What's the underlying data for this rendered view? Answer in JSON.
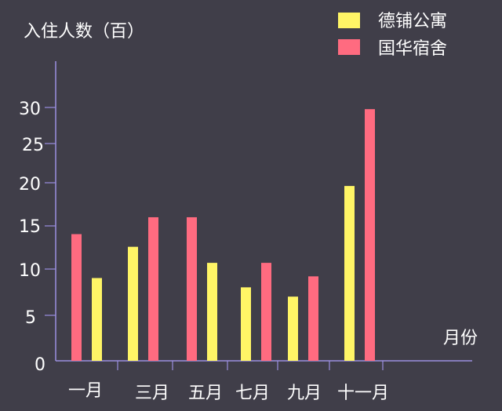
{
  "chart_data": {
    "type": "bar",
    "ylabel": "入住人数（百）",
    "xlabel": "月份",
    "yticks": [
      0,
      5,
      10,
      15,
      20,
      25,
      30
    ],
    "ylim": [
      0,
      35
    ],
    "grid": false,
    "legend_position": "top-right",
    "groups": [
      {
        "label": "一月",
        "bars": [
          {
            "series": "国华宿舍",
            "value": 15
          },
          {
            "series": "德铺公寓",
            "value": 9.8
          }
        ]
      },
      {
        "label": "三月",
        "bars": [
          {
            "series": "德铺公寓",
            "value": 13.5
          },
          {
            "series": "国华宿舍",
            "value": 17
          }
        ]
      },
      {
        "label": "五月",
        "bars": [
          {
            "series": "国华宿舍",
            "value": 17
          },
          {
            "series": "德铺公寓",
            "value": 11.6
          }
        ]
      },
      {
        "label": "七月",
        "bars": [
          {
            "series": "德铺公寓",
            "value": 8.7
          },
          {
            "series": "国华宿舍",
            "value": 11.6
          }
        ]
      },
      {
        "label": "九月",
        "bars": [
          {
            "series": "德铺公寓",
            "value": 7.6
          },
          {
            "series": "国华宿舍",
            "value": 10
          }
        ]
      },
      {
        "label": "十一月",
        "bars": [
          {
            "series": "德铺公寓",
            "value": 20.7
          },
          {
            "series": "国华宿舍",
            "value": 29.8
          }
        ]
      }
    ],
    "series": [
      {
        "name": "德铺公寓",
        "color": "#fff566"
      },
      {
        "name": "国华宿舍",
        "color": "#ff6b80"
      }
    ],
    "axis_color": "#9b8fe0"
  }
}
